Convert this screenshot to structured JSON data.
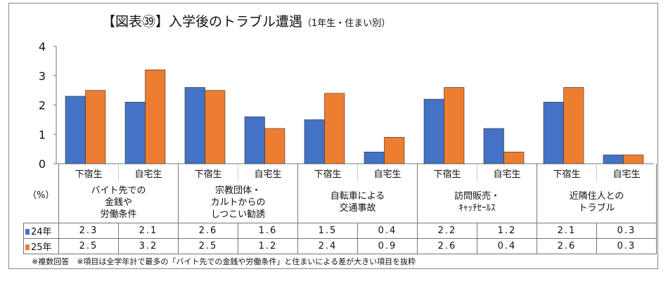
{
  "chart_data": {
    "type": "bar",
    "title": "【図表㊴】入学後のトラブル遭遇",
    "subtitle": "（1年生・住まい別）",
    "ylabel": "（%）",
    "ylim": [
      0,
      4
    ],
    "yticks": [
      0,
      1,
      2,
      3,
      4
    ],
    "grid": false,
    "categories": [
      "下宿生",
      "自宅生",
      "下宿生",
      "自宅生",
      "下宿生",
      "自宅生",
      "下宿生",
      "自宅生",
      "下宿生",
      "自宅生"
    ],
    "groups": [
      "バイト先での\n金銭や\n労働条件",
      "宗教団体・\nカルトからの\nしつこい勧誘",
      "自転車による\n交通事故",
      "訪問販売・\nｷｬｯﾁｾｰﾙｽ",
      "近隣住人との\nトラブル"
    ],
    "series": [
      {
        "name": "24年",
        "color": "#4472C4",
        "values": [
          2.3,
          2.1,
          2.6,
          1.6,
          1.5,
          0.4,
          2.2,
          1.2,
          2.1,
          0.3
        ]
      },
      {
        "name": "25年",
        "color": "#ED7D31",
        "values": [
          2.5,
          3.2,
          2.5,
          1.2,
          2.4,
          0.9,
          2.6,
          0.4,
          2.6,
          0.3
        ]
      }
    ],
    "legend": "table-left",
    "footnote": "※複数回答　※項目は全学年計で最多の「バイト先での金銭や労働条件」と住まいによる差が大きい項目を抜粋"
  }
}
